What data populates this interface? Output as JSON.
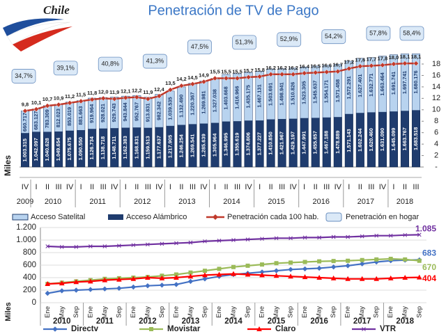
{
  "header": {
    "logo": "Chile",
    "title": "Penetración de TV de Pago"
  },
  "chart_data": [
    {
      "type": "stacked-bar-line",
      "ylabel": "Miles",
      "years": [
        {
          "year": "2009",
          "quarters": [
            "IV"
          ]
        },
        {
          "year": "2010",
          "quarters": [
            "I",
            "II",
            "III",
            "IV"
          ]
        },
        {
          "year": "2011",
          "quarters": [
            "I",
            "II",
            "III",
            "IV"
          ]
        },
        {
          "year": "2012",
          "quarters": [
            "I",
            "II",
            "III",
            "IV"
          ]
        },
        {
          "year": "2013",
          "quarters": [
            "I",
            "II",
            "III",
            "IV"
          ]
        },
        {
          "year": "2014",
          "quarters": [
            "I",
            "II",
            "III",
            "IV"
          ]
        },
        {
          "year": "2015",
          "quarters": [
            "I",
            "II",
            "III",
            "IV"
          ]
        },
        {
          "year": "2016",
          "quarters": [
            "I",
            "II",
            "III",
            "IV"
          ]
        },
        {
          "year": "2017",
          "quarters": [
            "I",
            "II",
            "III",
            "IV"
          ]
        },
        {
          "year": "2018",
          "quarters": [
            "I",
            "II",
            "III"
          ]
        }
      ],
      "ylim": [
        0,
        3060000
      ],
      "y2lim": [
        0,
        18
      ],
      "y2ticks": [
        {
          "value": 0,
          "label": "-"
        },
        2,
        4,
        6,
        8,
        10,
        12,
        14,
        16,
        18
      ],
      "series": [
        {
          "name": "Acceso Alámbrico",
          "color": "#1f3c6e",
          "values": [
            1003315,
            1042097,
            1040628,
            1049654,
            1075675,
            1090550,
            1126734,
            1138718,
            1148711,
            1162383,
            1168831,
            1159513,
            1177637,
            1217905,
            1246254,
            1269541,
            1285639,
            1305964,
            1346995,
            1355619,
            1374806,
            1377227,
            1410850,
            1421967,
            1429197,
            1447991,
            1455657,
            1467188,
            1478889,
            1571143,
            1602244,
            1620460,
            1631090,
            1645099,
            1663767,
            1683518
          ],
          "value_labels": [
            "1.003.315",
            "1.042.097",
            "1.040.628",
            "1.049.654",
            "1.075.675",
            "1.090.550",
            "1.126.734",
            "1.138.718",
            "1.148.711",
            "1.162.383",
            "1.168.831",
            "1.159.513",
            "1.177.637",
            "1.217.905",
            "1.246.254",
            "1.269.541",
            "1.285.639",
            "1.305.964",
            "1.346.995",
            "1.355.619",
            "1.374.806",
            "1.377.227",
            "1.410.850",
            "1.421.967",
            "1.429.197",
            "1.447.991",
            "1.455.657",
            "1.467.188",
            "1.478.889",
            "1.571.143",
            "1.602.244",
            "1.620.460",
            "1.631.090",
            "1.645.099",
            "1.663.767",
            "1.683.518"
          ]
        },
        {
          "name": "Acceso Satelital",
          "color": "#b8d3ef",
          "values": [
            660717,
            683127,
            783309,
            812023,
            853019,
            881663,
            919964,
            928021,
            929743,
            943844,
            952767,
            913831,
            982342,
            1039535,
            1132490,
            1220367,
            1269981,
            1327038,
            1403668,
            1416966,
            1435175,
            1467131,
            1503691,
            1498941,
            1510826,
            1523305,
            1545637,
            1554171,
            1571458,
            1572291,
            1627401,
            1632771,
            1663464,
            1691741,
            1697741,
            1680176
          ],
          "value_labels": [
            "660.717",
            "683.127",
            "783.309",
            "812.023",
            "853.019",
            "881.663",
            "919.964",
            "928.021",
            "929.743",
            "943.844",
            "952.767",
            "913.831",
            "982.342",
            "1.039.535",
            "1.132.490",
            "1.220.367",
            "1.269.981",
            "1.327.038",
            "1.403.668",
            "1.416.966",
            "1.435.175",
            "1.467.131",
            "1.503.691",
            "1.498.941",
            "1.510.826",
            "1.523.305",
            "1.545.637",
            "1.554.171",
            "1.571.458",
            "1.572.291",
            "1.627.401",
            "1.632.771",
            "1.663.464",
            "1.691.741",
            "1.697.741",
            "1.680.176"
          ]
        },
        {
          "name": "Penetración cada 100 hab.",
          "color": "#c0392b",
          "axis": "y2",
          "values": [
            9.8,
            10.1,
            10.7,
            10.9,
            11.2,
            11.5,
            11.8,
            12.0,
            11.9,
            12.1,
            12.2,
            11.9,
            12.4,
            13.5,
            14.2,
            14.5,
            14.9,
            15.5,
            15.5,
            15.5,
            15.7,
            15.8,
            16.2,
            16.2,
            16.2,
            16.4,
            16.5,
            16.6,
            16.7,
            17.2,
            17.6,
            17.7,
            17.8,
            18.0,
            18.1,
            18.1
          ],
          "value_labels": [
            "9,8",
            "10,1",
            "10,7",
            "10,9",
            "11,2",
            "11,5",
            "11,8",
            "12,0",
            "11,9",
            "12,1",
            "12,2",
            "11,9",
            "12,4",
            "13,5",
            "14,2",
            "14,5",
            "14,9",
            "15,5",
            "15,5",
            "15,5",
            "15,7",
            "15,8",
            "16,2",
            "16,2",
            "16,2",
            "16,4",
            "16,5",
            "16,6",
            "16,7",
            "17,2",
            "17,6",
            "17,7",
            "17,8",
            "18,0",
            "18,1",
            "18,1"
          ]
        }
      ],
      "hogar": {
        "name": "Penetración en hogar",
        "color": "#dbe9f7",
        "values": [
          34.7,
          39.1,
          40.8,
          41.3,
          47.5,
          51.3,
          52.9,
          54.2,
          57.8,
          58.4
        ],
        "value_labels": [
          "34,7%",
          "39,1%",
          "40,8%",
          "41,3%",
          "47,5%",
          "51,3%",
          "52,9%",
          "54,2%",
          "57,8%",
          "58,4%"
        ]
      }
    },
    {
      "type": "line",
      "ylabel": "Miles",
      "years": [
        {
          "year": "2010",
          "months": [
            "Ene",
            "May",
            "Sep"
          ]
        },
        {
          "year": "2011",
          "months": [
            "Ene",
            "May",
            "Sep"
          ]
        },
        {
          "year": "2012",
          "months": [
            "Ene",
            "May",
            "Sep"
          ]
        },
        {
          "year": "2013",
          "months": [
            "Ene",
            "May",
            "Sep"
          ]
        },
        {
          "year": "2014",
          "months": [
            "Ene",
            "May",
            "Sep"
          ]
        },
        {
          "year": "2015",
          "months": [
            "Ene",
            "May",
            "Sep"
          ]
        },
        {
          "year": "2016",
          "months": [
            "Ene",
            "May",
            "Sep"
          ]
        },
        {
          "year": "2017",
          "months": [
            "Ene",
            "May",
            "Sep"
          ]
        },
        {
          "year": "2018",
          "months": [
            "Ene",
            "May",
            "Sep"
          ]
        }
      ],
      "ylim": [
        0,
        1200
      ],
      "yticks": [
        0,
        200,
        400,
        600,
        800,
        {
          "value": 1000,
          "label": "1.000"
        },
        {
          "value": 1200,
          "label": "1.200"
        }
      ],
      "grid": true,
      "series": [
        {
          "name": "Directv",
          "color": "#4472c4",
          "end_label": "683",
          "values": [
            150,
            190,
            200,
            210,
            220,
            230,
            250,
            270,
            280,
            290,
            340,
            380,
            420,
            450,
            470,
            490,
            510,
            530,
            540,
            550,
            570,
            590,
            620,
            650,
            670,
            680,
            683
          ]
        },
        {
          "name": "Movistar",
          "color": "#9bbb59",
          "end_label": "670",
          "values": [
            300,
            320,
            340,
            360,
            380,
            390,
            400,
            410,
            430,
            450,
            480,
            510,
            540,
            570,
            590,
            610,
            630,
            640,
            650,
            660,
            665,
            670,
            680,
            690,
            700,
            690,
            670
          ]
        },
        {
          "name": "Claro",
          "color": "#ff0000",
          "end_label": "404",
          "values": [
            300,
            310,
            330,
            340,
            360,
            370,
            380,
            400,
            390,
            400,
            420,
            440,
            450,
            460,
            450,
            440,
            430,
            420,
            410,
            400,
            390,
            380,
            380,
            380,
            390,
            400,
            404
          ]
        },
        {
          "name": "VTR",
          "color": "#7030a0",
          "end_label": "1.085",
          "values": [
            900,
            890,
            890,
            900,
            900,
            910,
            920,
            930,
            940,
            950,
            960,
            980,
            990,
            1000,
            1010,
            1020,
            1030,
            1030,
            1040,
            1040,
            1050,
            1050,
            1060,
            1070,
            1070,
            1080,
            1085
          ]
        }
      ]
    }
  ]
}
